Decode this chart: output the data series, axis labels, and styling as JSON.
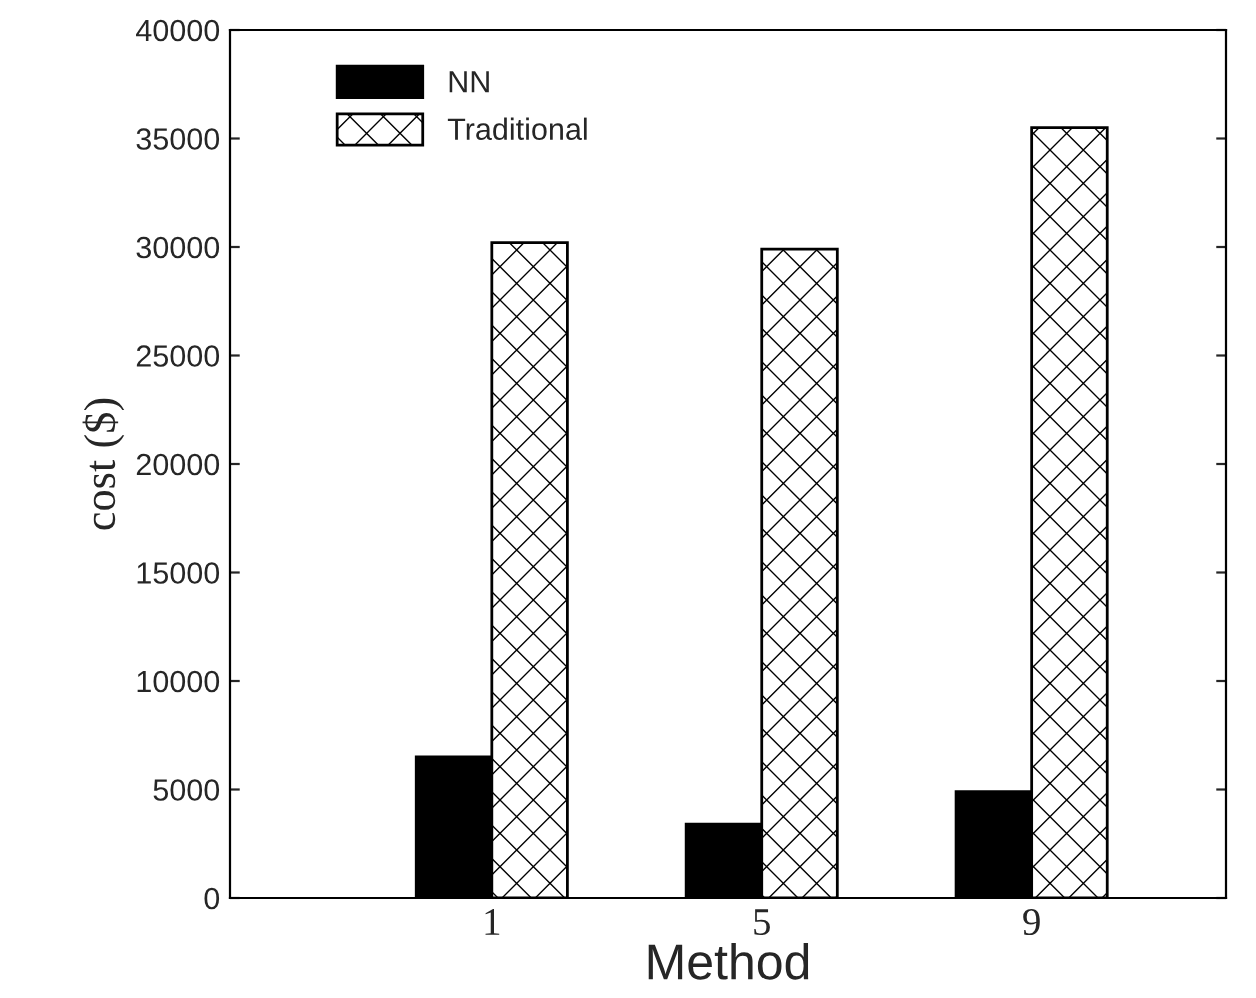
{
  "chart_data": {
    "type": "bar",
    "xlabel": "Method",
    "ylabel": "cost ($)",
    "categories": [
      "1",
      "5",
      "9"
    ],
    "series": [
      {
        "name": "NN",
        "color": "#000000",
        "values": [
          6500,
          3400,
          4900
        ]
      },
      {
        "name": "Traditional",
        "color": "#000000",
        "values": [
          30200,
          29900,
          35500
        ]
      }
    ],
    "ylim": [
      0,
      40000
    ],
    "yticks": [
      0,
      5000,
      10000,
      15000,
      20000,
      25000,
      30000,
      35000,
      40000
    ],
    "grid": false,
    "legend": "top left"
  }
}
